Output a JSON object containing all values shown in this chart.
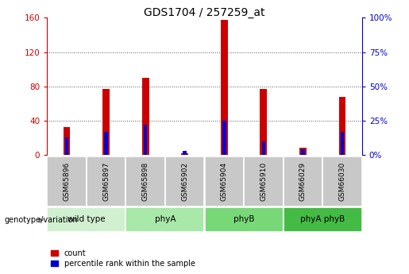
{
  "title": "GDS1704 / 257259_at",
  "samples": [
    "GSM65896",
    "GSM65897",
    "GSM65898",
    "GSM65902",
    "GSM65904",
    "GSM65910",
    "GSM66029",
    "GSM66030"
  ],
  "count_values": [
    32,
    77,
    90,
    2,
    158,
    77,
    8,
    68
  ],
  "percentile_values": [
    13,
    17,
    22,
    3,
    25,
    10,
    4,
    17
  ],
  "groups": [
    {
      "label": "wild type",
      "start": 0,
      "end": 2,
      "color": "#d0f0d0"
    },
    {
      "label": "phyA",
      "start": 2,
      "end": 4,
      "color": "#a8e8a8"
    },
    {
      "label": "phyB",
      "start": 4,
      "end": 6,
      "color": "#78d878"
    },
    {
      "label": "phyA phyB",
      "start": 6,
      "end": 8,
      "color": "#44bb44"
    }
  ],
  "bar_color_red": "#cc0000",
  "bar_color_blue": "#0000cc",
  "red_bar_width": 0.18,
  "blue_bar_width": 0.09,
  "ylim_left": [
    0,
    160
  ],
  "ylim_right": [
    0,
    100
  ],
  "yticks_left": [
    0,
    40,
    80,
    120,
    160
  ],
  "yticks_right": [
    0,
    25,
    50,
    75,
    100
  ],
  "grid_color": "#555555",
  "sample_box_bg": "#c8c8c8",
  "plot_bg": "#ffffff",
  "left_axis_color": "#cc0000",
  "right_axis_color": "#0000cc",
  "fig_bg": "#ffffff"
}
